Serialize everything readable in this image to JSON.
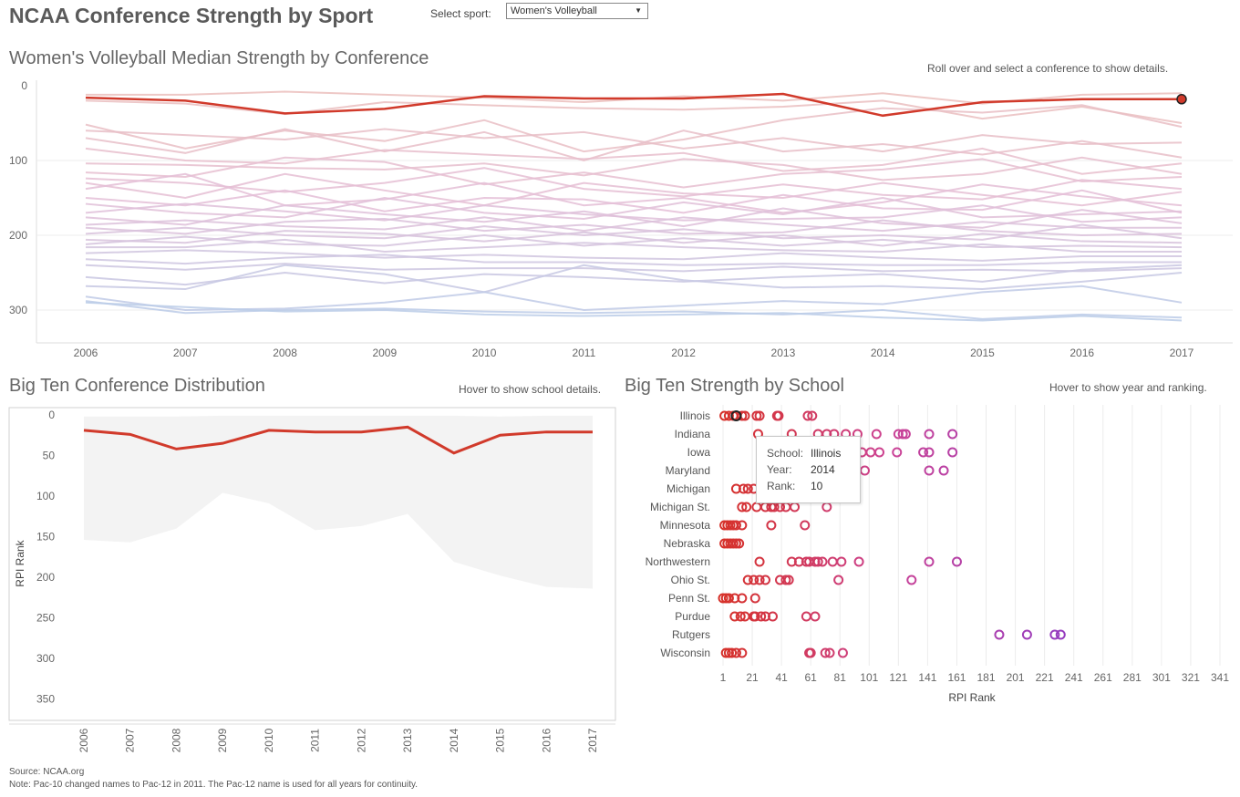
{
  "header": {
    "title": "NCAA Conference Strength by Sport",
    "select_label": "Select sport:",
    "select_value": "Women's Volleyball"
  },
  "top": {
    "title": "Women's Volleyball Median Strength by Conference",
    "hint": "Roll over and select a conference to show details."
  },
  "left": {
    "title": "Big Ten Conference Distribution",
    "hint": "Hover to show school details."
  },
  "right": {
    "title": "Big Ten Strength by School",
    "hint": "Hover to show year and ranking."
  },
  "tooltip": {
    "school_label": "School:",
    "school": "Illinois",
    "year_label": "Year:",
    "year": "2014",
    "rank_label": "Rank:",
    "rank": "10"
  },
  "footer": {
    "source": "Source: NCAA.org",
    "note": "Note: Pac-10 changed names to Pac-12 in 2011. The Pac-12 name is used for all years for continuity."
  },
  "colors": {
    "highlight": "#d13a2b",
    "band": "#f3f3f3",
    "grid": "#ececec"
  },
  "chart_data": [
    {
      "type": "line",
      "years": [
        2006,
        2007,
        2008,
        2009,
        2010,
        2011,
        2012,
        2013,
        2014,
        2015,
        2016,
        2017
      ],
      "ylim": [
        0,
        340
      ],
      "y_reversed": true,
      "yticks": [
        0,
        100,
        200,
        300
      ],
      "highlight_series": {
        "values": [
          16,
          20,
          37,
          31,
          14,
          17,
          17,
          11,
          40,
          22,
          18,
          18
        ]
      },
      "background_series": [
        [
          12,
          12,
          8,
          12,
          16,
          22,
          14,
          20,
          10,
          24,
          12,
          10
        ],
        [
          20,
          24,
          38,
          22,
          26,
          30,
          32,
          28,
          20,
          44,
          28,
          50
        ],
        [
          52,
          84,
          60,
          74,
          46,
          88,
          72,
          46,
          30,
          36,
          26,
          55
        ],
        [
          60,
          66,
          72,
          58,
          70,
          62,
          84,
          70,
          88,
          66,
          78,
          76
        ],
        [
          70,
          90,
          58,
          88,
          62,
          100,
          60,
          88,
          78,
          92,
          74,
          96
        ],
        [
          84,
          100,
          104,
          86,
          92,
          98,
          90,
          114,
          106,
          84,
          118,
          104
        ],
        [
          104,
          106,
          110,
          112,
          104,
          120,
          98,
          106,
          126,
          118,
          96,
          118
        ],
        [
          116,
          122,
          96,
          102,
          132,
          116,
          136,
          118,
          112,
          98,
          128,
          122
        ],
        [
          124,
          130,
          142,
          130,
          110,
          138,
          148,
          132,
          146,
          152,
          126,
          138
        ],
        [
          130,
          150,
          118,
          140,
          160,
          130,
          144,
          150,
          130,
          146,
          160,
          142
        ],
        [
          138,
          118,
          160,
          152,
          130,
          160,
          150,
          170,
          156,
          132,
          148,
          160
        ],
        [
          150,
          160,
          140,
          168,
          150,
          152,
          170,
          146,
          164,
          166,
          140,
          170
        ],
        [
          158,
          170,
          176,
          150,
          170,
          178,
          156,
          172,
          150,
          176,
          172,
          168
        ],
        [
          170,
          158,
          168,
          180,
          160,
          172,
          180,
          178,
          176,
          160,
          182,
          176
        ],
        [
          176,
          186,
          160,
          172,
          182,
          168,
          188,
          164,
          184,
          190,
          166,
          184
        ],
        [
          186,
          180,
          188,
          192,
          176,
          194,
          176,
          186,
          194,
          182,
          190,
          190
        ],
        [
          190,
          198,
          182,
          178,
          194,
          186,
          198,
          196,
          180,
          194,
          200,
          198
        ],
        [
          198,
          190,
          200,
          204,
          188,
          200,
          192,
          204,
          200,
          206,
          186,
          204
        ],
        [
          206,
          210,
          194,
          198,
          208,
          196,
          210,
          200,
          214,
          198,
          208,
          210
        ],
        [
          212,
          202,
          212,
          214,
          200,
          214,
          204,
          214,
          206,
          216,
          214,
          216
        ],
        [
          216,
          216,
          206,
          222,
          216,
          210,
          216,
          220,
          222,
          212,
          222,
          222
        ],
        [
          224,
          220,
          224,
          230,
          226,
          230,
          232,
          224,
          230,
          234,
          228,
          228
        ],
        [
          232,
          238,
          230,
          226,
          236,
          236,
          240,
          238,
          240,
          240,
          236,
          236
        ],
        [
          240,
          246,
          238,
          246,
          244,
          244,
          248,
          242,
          248,
          246,
          248,
          244
        ],
        [
          256,
          266,
          250,
          264,
          252,
          256,
          262,
          256,
          252,
          262,
          246,
          240
        ],
        [
          268,
          272,
          240,
          252,
          276,
          240,
          260,
          270,
          268,
          272,
          262,
          250
        ],
        [
          282,
          300,
          298,
          290,
          276,
          300,
          294,
          288,
          292,
          276,
          268,
          290
        ],
        [
          288,
          304,
          300,
          298,
          302,
          304,
          302,
          306,
          300,
          312,
          306,
          310
        ],
        [
          290,
          296,
          302,
          300,
          306,
          308,
          306,
          304,
          310,
          314,
          308,
          314
        ]
      ]
    },
    {
      "type": "area",
      "ylabel": "RPI Rank",
      "years": [
        "2006",
        "2007",
        "2008",
        "2009",
        "2010",
        "2011",
        "2012",
        "2013",
        "2014",
        "2015",
        "2016",
        "2017"
      ],
      "ylim": [
        0,
        350
      ],
      "y_reversed": true,
      "yticks": [
        0,
        50,
        100,
        150,
        200,
        250,
        300,
        350
      ],
      "band_min": [
        2,
        2,
        2,
        1,
        1,
        1,
        1,
        1,
        1,
        2,
        1,
        1
      ],
      "band_max": [
        154,
        157,
        140,
        96,
        109,
        142,
        137,
        122,
        181,
        198,
        212,
        214
      ],
      "median": [
        19,
        24,
        42,
        35,
        19,
        21,
        21,
        15,
        47,
        25,
        21,
        21
      ]
    },
    {
      "type": "scatter",
      "xlabel": "RPI Rank",
      "xlim": [
        1,
        350
      ],
      "xticks": [
        1,
        21,
        41,
        61,
        81,
        101,
        121,
        141,
        161,
        181,
        201,
        221,
        241,
        261,
        281,
        301,
        321,
        341
      ],
      "schools": [
        "Illinois",
        "Indiana",
        "Iowa",
        "Maryland",
        "Michigan",
        "Michigan St.",
        "Minnesota",
        "Nebraska",
        "Northwestern",
        "Ohio St.",
        "Penn St.",
        "Purdue",
        "Rutgers",
        "Wisconsin"
      ],
      "ranks": [
        [
          2,
          5,
          8,
          10,
          14,
          16,
          24,
          26,
          38,
          39,
          59,
          62
        ],
        [
          25,
          48,
          66,
          72,
          77,
          85,
          93,
          106,
          121,
          124,
          126,
          142,
          158
        ],
        [
          58,
          62,
          68,
          74,
          80,
          90,
          96,
          102,
          108,
          120,
          138,
          142,
          158
        ],
        [
          98,
          142,
          152
        ],
        [
          10,
          15,
          18,
          22
        ],
        [
          14,
          17,
          24,
          30,
          34,
          36,
          40,
          44,
          50,
          72
        ],
        [
          2,
          4,
          6,
          8,
          10,
          14,
          34,
          57
        ],
        [
          2,
          4,
          6,
          8,
          10,
          12
        ],
        [
          26,
          48,
          53,
          58,
          60,
          64,
          66,
          69,
          76,
          82,
          94,
          142,
          161
        ],
        [
          18,
          22,
          26,
          30,
          40,
          44,
          46,
          80,
          130
        ],
        [
          1,
          3,
          5,
          9,
          14,
          23
        ],
        [
          9,
          13,
          16,
          22,
          23,
          27,
          30,
          35,
          58,
          64
        ],
        [
          190,
          209,
          228,
          232
        ],
        [
          3,
          5,
          7,
          10,
          14,
          60,
          61,
          71,
          74,
          83
        ]
      ],
      "hovered": {
        "school": "Illinois",
        "rank": 10
      }
    }
  ]
}
